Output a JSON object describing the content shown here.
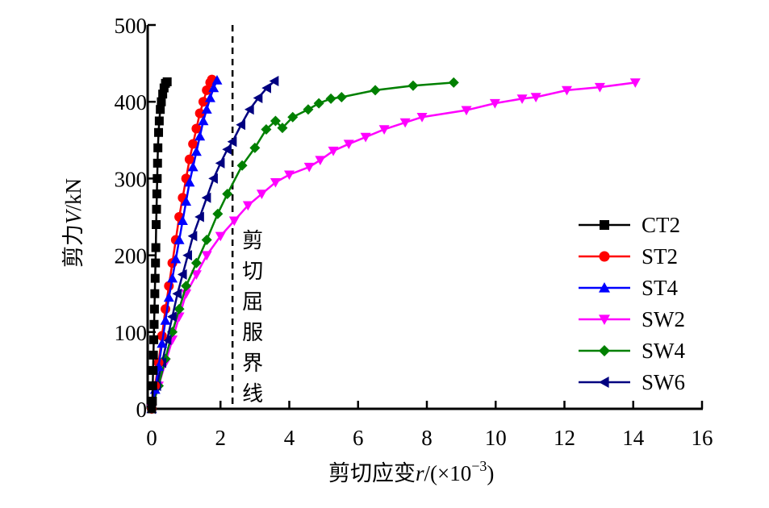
{
  "chart_data": {
    "type": "line",
    "title": "",
    "xlabel": "剪切应变r/(×10⁻³)",
    "xlabel_parts": {
      "main": "剪切应变",
      "var": "r",
      "unit_pre": "/(×10",
      "exp": "−3",
      "unit_post": ")"
    },
    "ylabel": "剪力V/kN",
    "ylabel_parts": {
      "main": "剪力",
      "var": "V",
      "unit": "/kN"
    },
    "xlim": [
      0,
      16
    ],
    "ylim": [
      0,
      500
    ],
    "xticks": [
      "0",
      "2",
      "4",
      "6",
      "8",
      "10",
      "12",
      "14",
      "16"
    ],
    "xtick_values": [
      0,
      2,
      4,
      6,
      8,
      10,
      12,
      14,
      16
    ],
    "yticks": [
      "0",
      "100",
      "200",
      "300",
      "400",
      "500"
    ],
    "ytick_values": [
      0,
      100,
      200,
      300,
      400,
      500
    ],
    "grid": false,
    "legend_position": "right",
    "annotation": {
      "text": "剪切屈服界线",
      "chars": [
        "剪",
        "切",
        "屈",
        "服",
        "界",
        "线"
      ],
      "x": 2.35
    },
    "series": [
      {
        "name": "CT2",
        "color": "#000000",
        "marker": "square",
        "x": [
          0,
          0.02,
          0.03,
          0.04,
          0.05,
          0.06,
          0.07,
          0.08,
          0.09,
          0.1,
          0.11,
          0.12,
          0.13,
          0.14,
          0.15,
          0.16,
          0.17,
          0.18,
          0.2,
          0.22,
          0.25,
          0.28,
          0.32,
          0.36,
          0.4,
          0.45
        ],
        "y": [
          0,
          10,
          30,
          50,
          70,
          90,
          110,
          130,
          150,
          170,
          190,
          210,
          240,
          260,
          280,
          300,
          320,
          340,
          360,
          375,
          390,
          400,
          410,
          418,
          424,
          426
        ]
      },
      {
        "name": "ST2",
        "color": "#ff0000",
        "marker": "circle",
        "x": [
          0,
          0.1,
          0.2,
          0.3,
          0.4,
          0.5,
          0.6,
          0.7,
          0.8,
          0.9,
          1.0,
          1.1,
          1.2,
          1.3,
          1.4,
          1.5,
          1.6,
          1.7,
          1.75
        ],
        "y": [
          0,
          30,
          60,
          95,
          130,
          160,
          190,
          220,
          250,
          275,
          300,
          325,
          345,
          365,
          385,
          400,
          415,
          425,
          429
        ]
      },
      {
        "name": "ST4",
        "color": "#0000ff",
        "marker": "triangle-up",
        "x": [
          0,
          0.1,
          0.2,
          0.3,
          0.4,
          0.5,
          0.6,
          0.7,
          0.8,
          0.9,
          1.0,
          1.1,
          1.2,
          1.3,
          1.4,
          1.5,
          1.6,
          1.7,
          1.8,
          1.9
        ],
        "y": [
          0,
          25,
          55,
          85,
          115,
          145,
          170,
          195,
          220,
          245,
          270,
          295,
          315,
          335,
          355,
          375,
          390,
          405,
          418,
          428
        ]
      },
      {
        "name": "SW2",
        "color": "#ff00ff",
        "marker": "triangle-down",
        "x": [
          0,
          0.2,
          0.4,
          0.6,
          0.8,
          1.0,
          1.3,
          1.6,
          2.0,
          2.4,
          2.8,
          3.2,
          3.6,
          4.0,
          4.58,
          4.9,
          5.28,
          5.73,
          6.22,
          6.76,
          7.37,
          7.86,
          9.15,
          9.98,
          10.77,
          11.17,
          12.07,
          13.03,
          14.06
        ],
        "y": [
          0,
          30,
          60,
          90,
          120,
          150,
          175,
          200,
          225,
          245,
          265,
          280,
          295,
          305,
          315,
          324,
          336,
          345,
          354,
          364,
          373,
          380,
          389,
          398,
          404,
          406,
          415,
          419,
          425
        ]
      },
      {
        "name": "SW4",
        "color": "#008000",
        "marker": "diamond",
        "x": [
          0,
          0.2,
          0.4,
          0.6,
          0.8,
          1.0,
          1.3,
          1.6,
          1.92,
          2.2,
          2.63,
          3.0,
          3.33,
          3.6,
          3.8,
          4.1,
          4.55,
          4.86,
          5.21,
          5.52,
          6.5,
          7.6,
          8.78
        ],
        "y": [
          0,
          30,
          65,
          100,
          130,
          160,
          190,
          220,
          254,
          280,
          317,
          340,
          364,
          375,
          366,
          380,
          390,
          398,
          404,
          406,
          415,
          421,
          425
        ]
      },
      {
        "name": "SW6",
        "color": "#000080",
        "marker": "triangle-left",
        "x": [
          0,
          0.15,
          0.3,
          0.45,
          0.6,
          0.75,
          0.9,
          1.05,
          1.2,
          1.4,
          1.6,
          1.8,
          2.0,
          2.2,
          2.35,
          2.6,
          2.85,
          3.1,
          3.35,
          3.57
        ],
        "y": [
          0,
          30,
          60,
          90,
          120,
          150,
          175,
          200,
          225,
          250,
          275,
          300,
          320,
          338,
          348,
          370,
          390,
          405,
          418,
          427
        ]
      }
    ]
  }
}
